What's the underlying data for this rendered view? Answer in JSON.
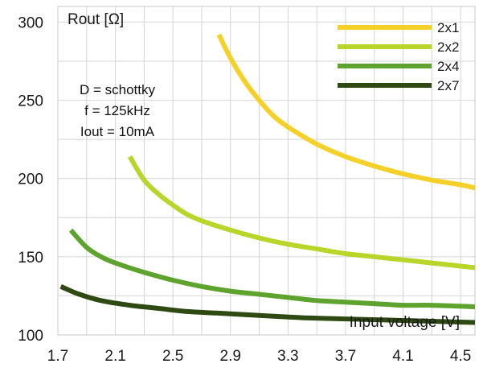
{
  "chart_data": {
    "type": "line",
    "xlabel": "Input voltage [V]",
    "ylabel": "Rout [Ω]",
    "xlim": [
      1.7,
      4.6
    ],
    "ylim": [
      100,
      310
    ],
    "x_ticks": [
      "1.7",
      "2.1",
      "2.5",
      "2.9",
      "3.3",
      "3.7",
      "4.1",
      "4.5"
    ],
    "y_ticks": [
      "100",
      "150",
      "200",
      "250",
      "300"
    ],
    "grid": true,
    "legend_position": "top-right",
    "annotations": [
      "D = schottky",
      "f = 125kHz",
      "Iout = 10mA"
    ],
    "series": [
      {
        "name": "2x1",
        "color": "#f5d028",
        "points": [
          [
            2.82,
            292
          ],
          [
            2.9,
            277
          ],
          [
            3.0,
            262
          ],
          [
            3.1,
            250
          ],
          [
            3.2,
            240
          ],
          [
            3.3,
            233
          ],
          [
            3.5,
            222
          ],
          [
            3.7,
            214
          ],
          [
            3.9,
            208
          ],
          [
            4.1,
            203
          ],
          [
            4.3,
            199
          ],
          [
            4.5,
            196
          ],
          [
            4.6,
            194
          ]
        ]
      },
      {
        "name": "2x2",
        "color": "#b8d62a",
        "points": [
          [
            2.2,
            214
          ],
          [
            2.3,
            199
          ],
          [
            2.4,
            190
          ],
          [
            2.5,
            183
          ],
          [
            2.6,
            177
          ],
          [
            2.7,
            173
          ],
          [
            2.9,
            167
          ],
          [
            3.1,
            162
          ],
          [
            3.3,
            158
          ],
          [
            3.5,
            155
          ],
          [
            3.7,
            152
          ],
          [
            3.9,
            150
          ],
          [
            4.1,
            148
          ],
          [
            4.3,
            146
          ],
          [
            4.5,
            144
          ],
          [
            4.6,
            143
          ]
        ]
      },
      {
        "name": "2x4",
        "color": "#5ea32e",
        "points": [
          [
            1.79,
            167
          ],
          [
            1.9,
            156
          ],
          [
            2.0,
            150
          ],
          [
            2.1,
            146
          ],
          [
            2.3,
            140
          ],
          [
            2.5,
            135
          ],
          [
            2.7,
            131
          ],
          [
            2.9,
            128
          ],
          [
            3.1,
            126
          ],
          [
            3.3,
            124
          ],
          [
            3.5,
            122
          ],
          [
            3.7,
            121
          ],
          [
            3.9,
            120
          ],
          [
            4.1,
            119
          ],
          [
            4.3,
            119
          ],
          [
            4.6,
            118
          ]
        ]
      },
      {
        "name": "2x7",
        "color": "#2e4a12",
        "points": [
          [
            1.72,
            131
          ],
          [
            1.85,
            126
          ],
          [
            2.0,
            122
          ],
          [
            2.2,
            119
          ],
          [
            2.4,
            117
          ],
          [
            2.6,
            115
          ],
          [
            2.8,
            114
          ],
          [
            3.0,
            113
          ],
          [
            3.2,
            112
          ],
          [
            3.4,
            111
          ],
          [
            3.6,
            110.5
          ],
          [
            3.8,
            110
          ],
          [
            4.0,
            109.5
          ],
          [
            4.2,
            109
          ],
          [
            4.4,
            108.5
          ],
          [
            4.6,
            108
          ]
        ]
      }
    ]
  }
}
